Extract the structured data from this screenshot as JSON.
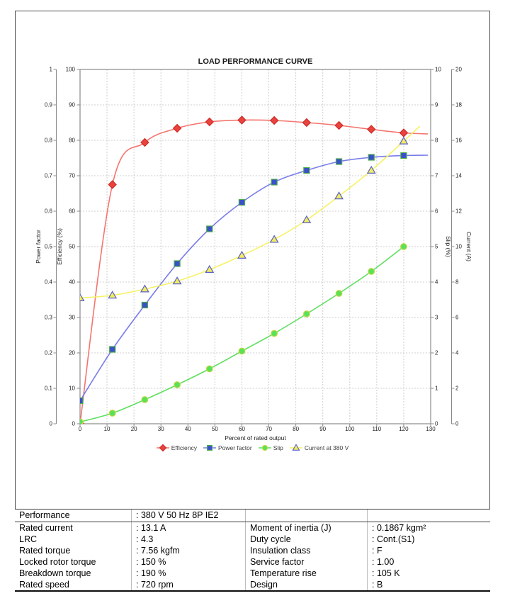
{
  "chart_data": {
    "type": "line",
    "title": "LOAD PERFORMANCE CURVE",
    "xlabel": "Percent of rated output",
    "x_range": [
      0,
      130
    ],
    "x_tick_step": 10,
    "grid": true,
    "legend_position": "bottom",
    "axes": {
      "power_factor": {
        "label": "Power factor",
        "range": [
          0,
          1
        ],
        "step": 0.1,
        "side": "left"
      },
      "efficiency": {
        "label": "Efficiency (%)",
        "range": [
          0,
          100
        ],
        "step": 10,
        "side": "left"
      },
      "slip": {
        "label": "Slip (%)",
        "range": [
          0,
          10
        ],
        "step": 1,
        "side": "right"
      },
      "current": {
        "label": "Current (A)",
        "range": [
          0,
          20
        ],
        "step": 2,
        "side": "right"
      }
    },
    "x": [
      0,
      12,
      24,
      36,
      48,
      60,
      72,
      84,
      96,
      108,
      120
    ],
    "series": [
      {
        "name": "Efficiency",
        "axis": "efficiency",
        "marker": "diamond",
        "line_color": "#f4756f",
        "marker_fill": "#e8433e",
        "marker_stroke": "#cf2b26",
        "values": [
          0,
          67.5,
          79.4,
          83.4,
          85.2,
          85.7,
          85.6,
          85.0,
          84.2,
          83.1,
          82.1
        ],
        "tail": [
          129,
          81.8
        ]
      },
      {
        "name": "Power factor",
        "axis": "power_factor",
        "marker": "square",
        "line_color": "#787ce9",
        "marker_fill": "#3a50c8",
        "marker_stroke": "#4fae4a",
        "values": [
          0.065,
          0.21,
          0.335,
          0.452,
          0.55,
          0.625,
          0.682,
          0.715,
          0.74,
          0.752,
          0.757
        ],
        "tail": [
          129,
          0.758
        ]
      },
      {
        "name": "Slip",
        "axis": "slip",
        "marker": "circle",
        "line_color": "#5fdf5f",
        "marker_fill": "#57e357",
        "marker_stroke": "#c6d643",
        "values": [
          0.05,
          0.3,
          0.68,
          1.1,
          1.55,
          2.05,
          2.55,
          3.1,
          3.68,
          4.3,
          5.0
        ]
      },
      {
        "name": "Current at 380 V",
        "axis": "current",
        "marker": "triangle",
        "line_color": "#f6f264",
        "marker_fill": "#f2ec62",
        "marker_stroke": "#5a62c8",
        "values": [
          7.1,
          7.25,
          7.6,
          8.05,
          8.7,
          9.5,
          10.4,
          11.5,
          12.85,
          14.3,
          15.95
        ],
        "tail": [
          126,
          16.8
        ]
      }
    ],
    "legend": [
      "Efficiency",
      "Power factor",
      "Slip",
      "Current at 380 V"
    ]
  },
  "table": {
    "header_row": {
      "label": "Performance",
      "value": ": 380 V 50 Hz 8P IE2"
    },
    "rows": [
      {
        "l1": "Rated current",
        "v1": ": 13.1 A",
        "l2": "Moment of inertia (J)",
        "v2": ": 0.1867 kgm²"
      },
      {
        "l1": "LRC",
        "v1": ": 4.3",
        "l2": "Duty cycle",
        "v2": ": Cont.(S1)"
      },
      {
        "l1": "Rated torque",
        "v1": ": 7.56 kgfm",
        "l2": "Insulation class",
        "v2": ": F"
      },
      {
        "l1": "Locked rotor torque",
        "v1": ": 150 %",
        "l2": "Service factor",
        "v2": ": 1.00"
      },
      {
        "l1": "Breakdown torque",
        "v1": ": 190 %",
        "l2": "Temperature rise",
        "v2": ": 105 K"
      },
      {
        "l1": "Rated speed",
        "v1": ": 720 rpm",
        "l2": "Design",
        "v2": ": B"
      }
    ]
  },
  "colors": {
    "frame_border": "#4d4d4d",
    "grid": "#cfcfcf",
    "plot_border": "#8a8a8a",
    "axis_text": "#222222"
  }
}
